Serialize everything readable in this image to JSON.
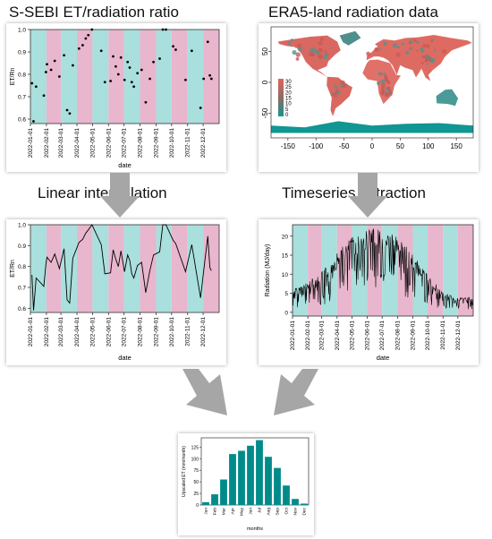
{
  "titles": {
    "ratio": "S-SEBI ET/radiation ratio",
    "era5": "ERA5-land radiation data",
    "interp": "Linear interpolation",
    "extract": "Timeseries extraction"
  },
  "months": [
    "2022-01-01",
    "2022-02-01",
    "2022-03-01",
    "2022-04-01",
    "2022-05-01",
    "2022-06-01",
    "2022-07-01",
    "2022-08-01",
    "2022-09-01",
    "2022-10-01",
    "2022-11-01",
    "2022-12-01"
  ],
  "band_colors": {
    "teal": "#a9dfdd",
    "pink": "#e8b6cd"
  },
  "accent": {
    "teal": "#00827f",
    "arrow": "#a6a6a6"
  },
  "chart_data": [
    {
      "id": "ratio_scatter",
      "type": "scatter",
      "title": "S-SEBI ET/radiation ratio",
      "xlabel": "date",
      "ylabel": "ET/Rn",
      "ylim": [
        0.58,
        1.0
      ],
      "yticks": [
        "0.6",
        "0.7",
        "0.8",
        "0.9",
        "1.0"
      ],
      "x_range": [
        "2022-01-01",
        "2022-12-31"
      ],
      "points": [
        {
          "x": "2022-01-04",
          "y": 0.76
        },
        {
          "x": "2022-01-07",
          "y": 0.59
        },
        {
          "x": "2022-01-12",
          "y": 0.745
        },
        {
          "x": "2022-01-27",
          "y": 0.705
        },
        {
          "x": "2022-01-31",
          "y": 0.81
        },
        {
          "x": "2022-02-02",
          "y": 0.845
        },
        {
          "x": "2022-02-10",
          "y": 0.82
        },
        {
          "x": "2022-02-17",
          "y": 0.86
        },
        {
          "x": "2022-02-26",
          "y": 0.79
        },
        {
          "x": "2022-03-07",
          "y": 0.885
        },
        {
          "x": "2022-03-13",
          "y": 0.64
        },
        {
          "x": "2022-03-18",
          "y": 0.625
        },
        {
          "x": "2022-03-24",
          "y": 0.84
        },
        {
          "x": "2022-04-05",
          "y": 0.915
        },
        {
          "x": "2022-04-12",
          "y": 0.93
        },
        {
          "x": "2022-04-18",
          "y": 0.96
        },
        {
          "x": "2022-04-23",
          "y": 0.975
        },
        {
          "x": "2022-04-30",
          "y": 1.0
        },
        {
          "x": "2022-05-18",
          "y": 0.905
        },
        {
          "x": "2022-05-25",
          "y": 0.765
        },
        {
          "x": "2022-06-05",
          "y": 0.77
        },
        {
          "x": "2022-06-10",
          "y": 0.88
        },
        {
          "x": "2022-06-15",
          "y": 0.835
        },
        {
          "x": "2022-06-20",
          "y": 0.8
        },
        {
          "x": "2022-06-25",
          "y": 0.875
        },
        {
          "x": "2022-07-02",
          "y": 0.775
        },
        {
          "x": "2022-07-08",
          "y": 0.855
        },
        {
          "x": "2022-07-12",
          "y": 0.83
        },
        {
          "x": "2022-07-16",
          "y": 0.765
        },
        {
          "x": "2022-07-20",
          "y": 0.745
        },
        {
          "x": "2022-07-27",
          "y": 0.805
        },
        {
          "x": "2022-08-04",
          "y": 0.82
        },
        {
          "x": "2022-08-12",
          "y": 0.675
        },
        {
          "x": "2022-08-20",
          "y": 0.78
        },
        {
          "x": "2022-08-27",
          "y": 0.855
        },
        {
          "x": "2022-09-08",
          "y": 0.87
        },
        {
          "x": "2022-09-14",
          "y": 1.0
        },
        {
          "x": "2022-09-20",
          "y": 1.0
        },
        {
          "x": "2022-10-04",
          "y": 0.925
        },
        {
          "x": "2022-10-09",
          "y": 0.91
        },
        {
          "x": "2022-10-28",
          "y": 0.775
        },
        {
          "x": "2022-11-09",
          "y": 0.905
        },
        {
          "x": "2022-11-26",
          "y": 0.65
        },
        {
          "x": "2022-12-02",
          "y": 0.78
        },
        {
          "x": "2022-12-10",
          "y": 0.945
        },
        {
          "x": "2022-12-14",
          "y": 0.795
        },
        {
          "x": "2022-12-17",
          "y": 0.78
        }
      ]
    },
    {
      "id": "era5_map",
      "type": "heatmap",
      "title": "ERA5-land radiation data",
      "x_ticks": [
        "-150",
        "-100",
        "-50",
        "0",
        "50",
        "100",
        "150"
      ],
      "y_ticks": [
        "50",
        "0",
        "-50"
      ],
      "legend": [
        "30",
        "25",
        "20",
        "15",
        "10",
        "5",
        "0"
      ],
      "legend_position": "left"
    },
    {
      "id": "ratio_interp",
      "type": "line",
      "title": "Linear interpolation",
      "xlabel": "date",
      "ylabel": "ET/Rn",
      "ylim": [
        0.58,
        1.0
      ],
      "yticks": [
        "0.6",
        "0.7",
        "0.8",
        "0.9",
        "1.0"
      ],
      "x_range": [
        "2022-01-01",
        "2022-12-31"
      ],
      "uses_points_of": "ratio_scatter"
    },
    {
      "id": "radiation_ts",
      "type": "line",
      "title": "Timeseries extraction",
      "xlabel": "date",
      "ylabel": "Radiation (MJ/day)",
      "ylim": [
        -1,
        23
      ],
      "yticks": [
        "0",
        "5",
        "10",
        "15",
        "20"
      ],
      "x_range": [
        "2022-01-01",
        "2022-12-31"
      ],
      "envelope": {
        "month_peak": [
          6,
          8,
          11,
          16,
          20,
          22,
          22,
          20,
          15,
          10,
          5,
          4
        ],
        "month_low": [
          1,
          1.5,
          2,
          3,
          5,
          6,
          7,
          5,
          3,
          1.5,
          0.8,
          0.8
        ]
      }
    },
    {
      "id": "upscaled_et",
      "type": "bar",
      "xlabel": "months",
      "ylabel": "Upscaled ET (mm/month)",
      "ylim": [
        0,
        145
      ],
      "yticks": [
        "0",
        "25",
        "50",
        "75",
        "100",
        "125"
      ],
      "categories": [
        "Jan",
        "Feb",
        "Mar",
        "Apr",
        "May",
        "Jun",
        "Jul",
        "Aug",
        "Sep",
        "Oct",
        "Nov",
        "Dec"
      ],
      "values": [
        6,
        23,
        55,
        110,
        117,
        128,
        140,
        104,
        80,
        42,
        13,
        3
      ],
      "bar_color": "#008b8b"
    }
  ]
}
